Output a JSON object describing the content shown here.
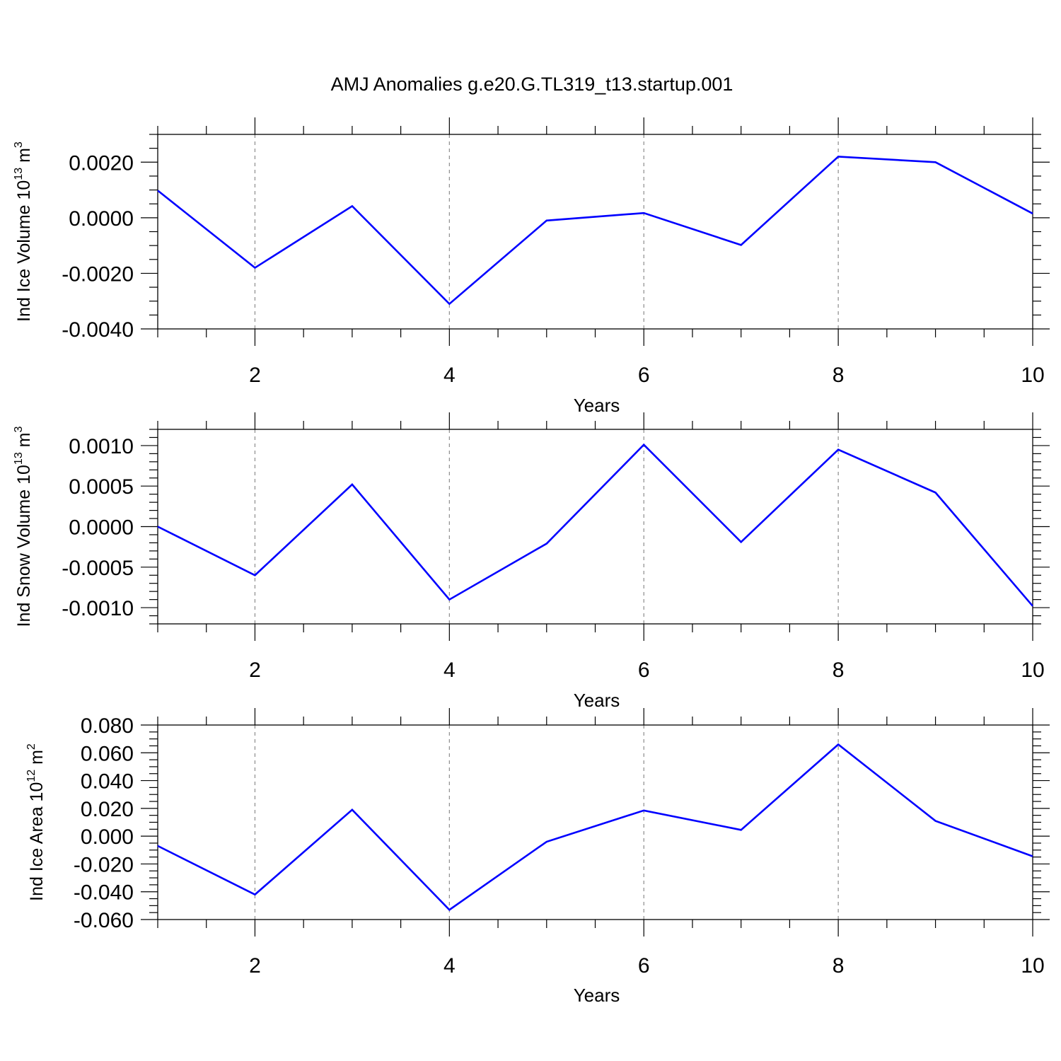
{
  "title": "AMJ Anomalies g.e20.G.TL319_t13.startup.001",
  "colors": {
    "line": "#0000ff",
    "axis": "#000000",
    "grid": "#8c8c8c",
    "background": "#ffffff"
  },
  "chart_data": [
    {
      "type": "line",
      "xlabel": "Years",
      "ylabel": {
        "text": "Ind Ice Volume 10",
        "sup": "13",
        "unit": " m",
        "unit_sup": "3"
      },
      "x": [
        1,
        2,
        3,
        4,
        5,
        6,
        7,
        8,
        9,
        10
      ],
      "series": [
        {
          "values": [
            0.00098,
            -0.0018,
            0.00042,
            -0.0031,
            -0.0001,
            0.00017,
            -0.00098,
            0.0022,
            0.002,
            0.00015
          ]
        }
      ],
      "xlim": [
        1,
        10
      ],
      "ylim": [
        -0.004,
        0.003
      ],
      "xticks": [
        2,
        4,
        6,
        8,
        10
      ],
      "xtick_labels": [
        "2",
        "4",
        "6",
        "8",
        "10"
      ],
      "yticks": [
        -0.004,
        -0.002,
        0.0,
        0.002
      ],
      "ytick_labels": [
        "-0.0040",
        "-0.0020",
        "0.0000",
        "0.0020"
      ],
      "y_minor_step": 0.0005,
      "x_minor_step": 0.5,
      "grid": "vertical dashed at major x ticks"
    },
    {
      "type": "line",
      "xlabel": "Years",
      "ylabel": {
        "text": "Ind Snow Volume 10",
        "sup": "13",
        "unit": " m",
        "unit_sup": "3"
      },
      "x": [
        1,
        2,
        3,
        4,
        5,
        6,
        7,
        8,
        9,
        10
      ],
      "series": [
        {
          "values": [
            0.0,
            -0.0006,
            0.00052,
            -0.0009,
            -0.00021,
            0.00101,
            -0.00019,
            0.00095,
            0.00042,
            -0.00098
          ]
        }
      ],
      "xlim": [
        1,
        10
      ],
      "ylim": [
        -0.0012,
        0.0012
      ],
      "xticks": [
        2,
        4,
        6,
        8,
        10
      ],
      "xtick_labels": [
        "2",
        "4",
        "6",
        "8",
        "10"
      ],
      "yticks": [
        -0.001,
        -0.0005,
        0.0,
        0.0005,
        0.001
      ],
      "ytick_labels": [
        "-0.0010",
        "-0.0005",
        "0.0000",
        "0.0005",
        "0.0010"
      ],
      "y_minor_step": 0.0001,
      "x_minor_step": 0.5,
      "grid": "vertical dashed at major x ticks"
    },
    {
      "type": "line",
      "xlabel": "Years",
      "ylabel": {
        "text": "Ind Ice Area 10",
        "sup": "12",
        "unit": " m",
        "unit_sup": "2"
      },
      "x": [
        1,
        2,
        3,
        4,
        5,
        6,
        7,
        8,
        9,
        10
      ],
      "series": [
        {
          "values": [
            -0.007,
            -0.042,
            0.019,
            -0.053,
            -0.004,
            0.0185,
            0.0045,
            0.066,
            0.011,
            -0.0145
          ]
        }
      ],
      "xlim": [
        1,
        10
      ],
      "ylim": [
        -0.06,
        0.08
      ],
      "xticks": [
        2,
        4,
        6,
        8,
        10
      ],
      "xtick_labels": [
        "2",
        "4",
        "6",
        "8",
        "10"
      ],
      "yticks": [
        -0.06,
        -0.04,
        -0.02,
        0.0,
        0.02,
        0.04,
        0.06,
        0.08
      ],
      "ytick_labels": [
        "-0.060",
        "-0.040",
        "-0.020",
        "0.000",
        "0.020",
        "0.040",
        "0.060",
        "0.080"
      ],
      "y_minor_step": 0.005,
      "x_minor_step": 0.5,
      "grid": "vertical dashed at major x ticks"
    }
  ]
}
